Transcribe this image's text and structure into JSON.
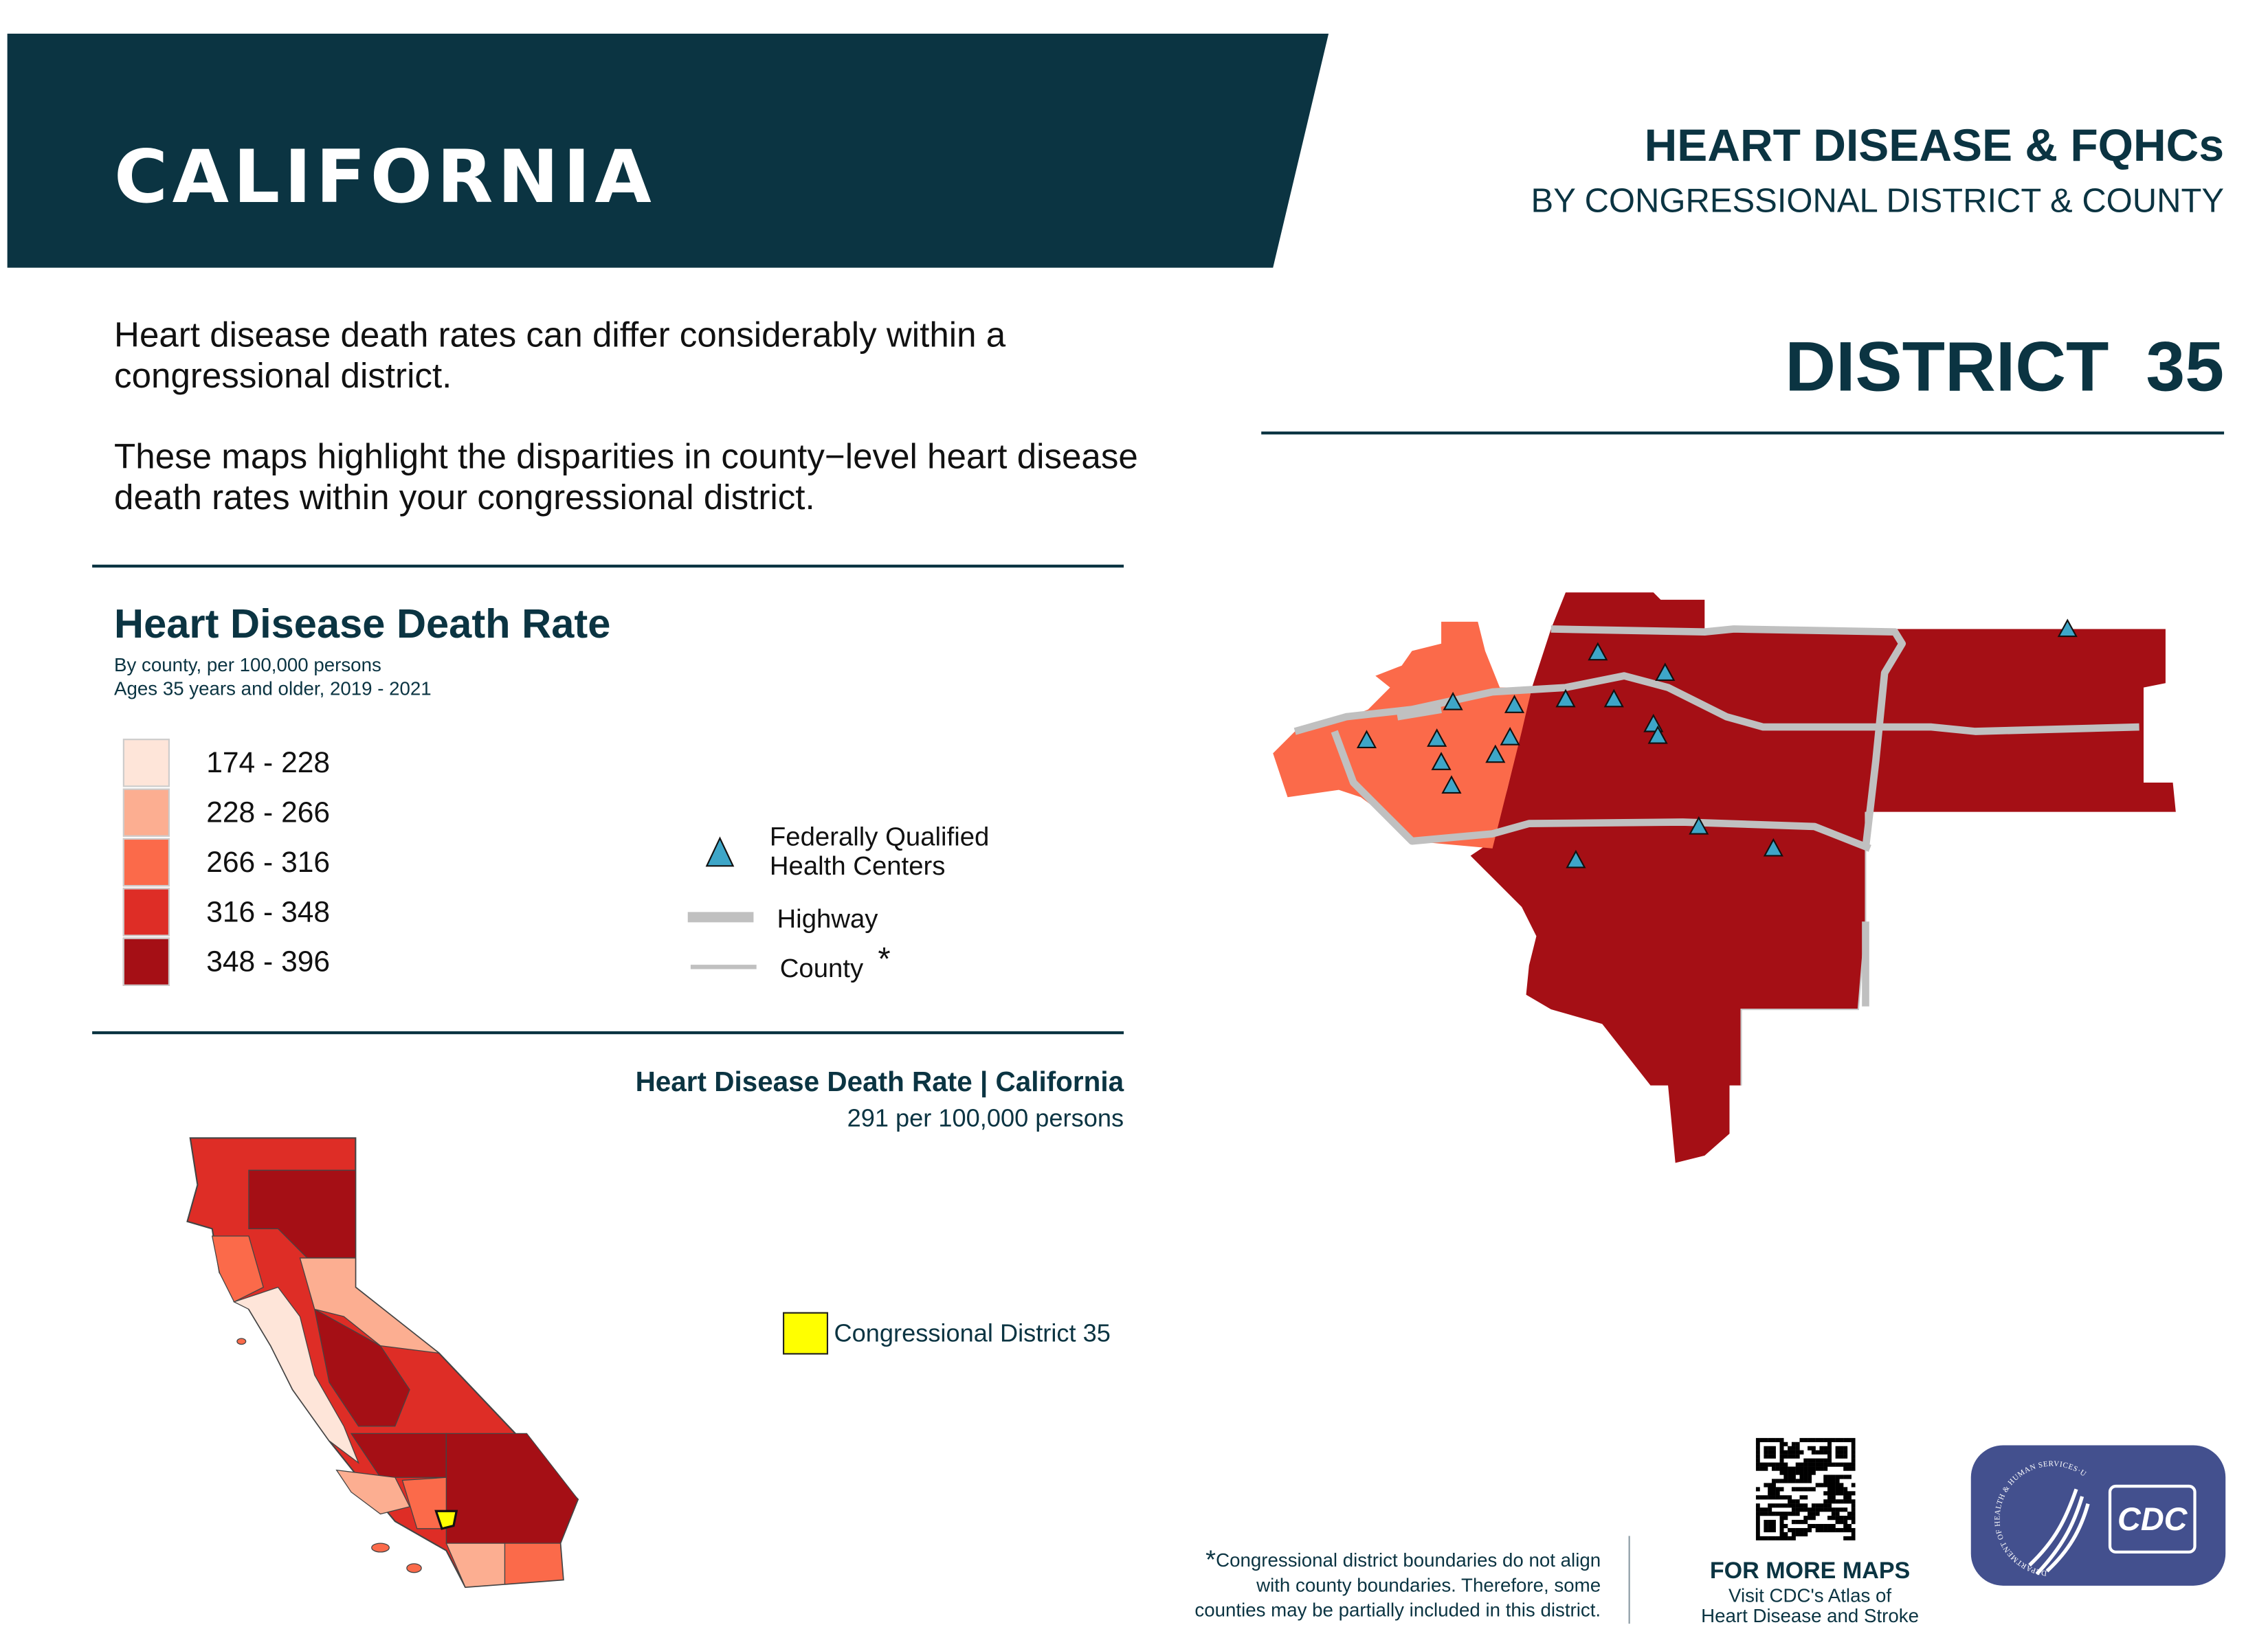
{
  "header": {
    "state": "CALIFORNIA",
    "title": "HEART DISEASE & FQHCs",
    "subtitle": "BY CONGRESSIONAL DISTRICT & COUNTY",
    "district_label": "DISTRICT 35"
  },
  "intro": {
    "p1": "Heart disease death rates can differ considerably within a congressional district.",
    "p2": "These maps highlight the disparities in county−level heart disease death rates within your congressional district."
  },
  "legend": {
    "title": "Heart Disease Death Rate",
    "sub1": "By county, per 100,000 persons",
    "sub2": "Ages 35 years and older, 2019 - 2021",
    "classes": [
      {
        "label": "174 - 228",
        "color": "#fee5d9"
      },
      {
        "label": "228 - 266",
        "color": "#fcae91"
      },
      {
        "label": "266 - 316",
        "color": "#fb6a4a"
      },
      {
        "label": "316 - 348",
        "color": "#de2d26"
      },
      {
        "label": "348 - 396",
        "color": "#a50f15"
      }
    ],
    "fqhc_label_1": "Federally Qualified",
    "fqhc_label_2": "Health Centers",
    "highway_label": "Highway",
    "county_label": "County",
    "asterisk": "*"
  },
  "state_rate": {
    "title": "Heart Disease Death Rate | California",
    "value": "291 per 100,000 persons"
  },
  "inset": {
    "district_key": "Congressional District 35",
    "highlight_color": "#ffff00"
  },
  "footer": {
    "asterisk": "*",
    "note_1": "Congressional district boundaries do not align",
    "note_2": "with county boundaries. Therefore, some",
    "note_3": "counties may be partially included in this district.",
    "more_title": "FOR MORE MAPS",
    "more_1": "Visit CDC's Atlas of",
    "more_2": "Heart Disease and Stroke",
    "cdc_logo_text": "CDC",
    "hhs_seal_text": "DEPARTMENT OF HEALTH & HUMAN SERVICES·USA"
  },
  "colors": {
    "navy": "#0b3442",
    "fqhc": "#3ea6c8",
    "highway": "#c0c0c0",
    "cdc_blue": "#43508e"
  }
}
